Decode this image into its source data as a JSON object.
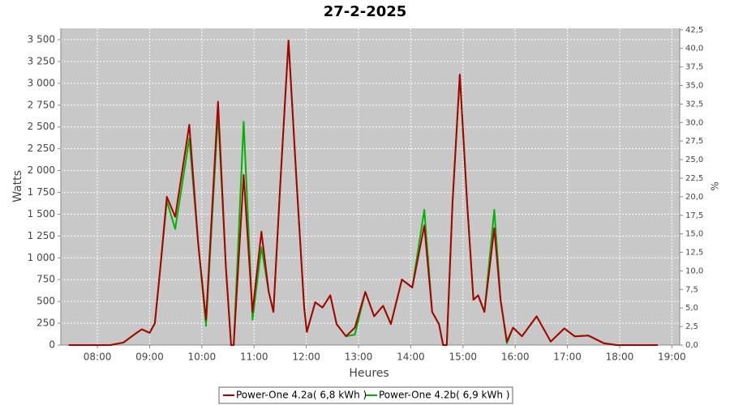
{
  "chart_data": {
    "type": "line",
    "title": "27-2-2025",
    "x_label": "Heures",
    "y_label": "Watts",
    "y2_label": "%",
    "x": [
      7.45,
      8.0,
      8.25,
      8.5,
      8.75,
      8.85,
      9.0,
      9.1,
      9.2,
      9.33,
      9.49,
      9.76,
      9.93,
      10.08,
      10.31,
      10.46,
      10.56,
      10.61,
      10.8,
      10.97,
      11.14,
      11.28,
      11.37,
      11.5,
      11.66,
      11.81,
      11.96,
      12.01,
      12.17,
      12.31,
      12.46,
      12.58,
      12.76,
      12.93,
      13.13,
      13.3,
      13.47,
      13.62,
      13.83,
      14.03,
      14.26,
      14.41,
      14.54,
      14.62,
      14.69,
      14.8,
      14.94,
      15.08,
      15.2,
      15.29,
      15.41,
      15.6,
      15.72,
      15.84,
      15.96,
      16.13,
      16.41,
      16.68,
      16.94,
      17.14,
      17.4,
      17.7,
      17.94,
      18.73
    ],
    "series": [
      {
        "name": "Power-One 4.2a( 6,8 kWh )",
        "color": "#aa0000",
        "values": [
          0,
          0,
          0,
          30,
          140,
          180,
          140,
          250,
          850,
          1700,
          1470,
          2525,
          1170,
          290,
          2790,
          890,
          0,
          0,
          1950,
          380,
          1300,
          610,
          380,
          1820,
          3490,
          1910,
          430,
          150,
          490,
          430,
          570,
          240,
          100,
          200,
          610,
          330,
          450,
          240,
          750,
          660,
          1370,
          380,
          240,
          0,
          0,
          1630,
          3100,
          1630,
          520,
          570,
          380,
          1340,
          520,
          40,
          200,
          100,
          330,
          40,
          190,
          100,
          110,
          20,
          0,
          0
        ]
      },
      {
        "name": "Power-One 4.2b( 6,9 kWh )",
        "color": "#00b400",
        "values": [
          0,
          0,
          0,
          30,
          140,
          180,
          140,
          250,
          850,
          1650,
          1330,
          2370,
          1170,
          220,
          2650,
          890,
          0,
          0,
          2560,
          290,
          1120,
          610,
          380,
          1820,
          3490,
          1910,
          430,
          150,
          490,
          430,
          570,
          240,
          100,
          120,
          610,
          330,
          450,
          240,
          750,
          660,
          1550,
          380,
          240,
          0,
          0,
          1630,
          3100,
          1630,
          520,
          570,
          380,
          1550,
          520,
          20,
          200,
          100,
          330,
          40,
          190,
          100,
          110,
          20,
          0,
          0
        ]
      }
    ],
    "xlim": [
      7.3,
      19.15
    ],
    "xticks": [
      {
        "value": 8,
        "label": "08:00"
      },
      {
        "value": 9,
        "label": "09:00"
      },
      {
        "value": 10,
        "label": "10:00"
      },
      {
        "value": 11,
        "label": "11:00"
      },
      {
        "value": 12,
        "label": "12:00"
      },
      {
        "value": 13,
        "label": "13:00"
      },
      {
        "value": 14,
        "label": "14:00"
      },
      {
        "value": 15,
        "label": "15:00"
      },
      {
        "value": 16,
        "label": "16:00"
      },
      {
        "value": 17,
        "label": "17:00"
      },
      {
        "value": 18,
        "label": "18:00"
      },
      {
        "value": 19,
        "label": "19:00"
      }
    ],
    "ylim": [
      0,
      3630
    ],
    "yticks": [
      0,
      250,
      500,
      750,
      {
        "value": 1000,
        "label": "1 000"
      },
      {
        "value": 1250,
        "label": "1 250"
      },
      {
        "value": 1500,
        "label": "1 500"
      },
      {
        "value": 1750,
        "label": "1 750"
      },
      {
        "value": 2000,
        "label": "2 000"
      },
      {
        "value": 2250,
        "label": "2 250"
      },
      {
        "value": 2500,
        "label": "2 500"
      },
      {
        "value": 2750,
        "label": "2 750"
      },
      {
        "value": 3000,
        "label": "3 000"
      },
      {
        "value": 3250,
        "label": "3 250"
      },
      {
        "value": 3500,
        "label": "3 500"
      }
    ],
    "y2lim": [
      0,
      42.7
    ],
    "y2ticks": [
      {
        "value": 0,
        "label": "0,0"
      },
      {
        "value": 2.5,
        "label": "2,5"
      },
      {
        "value": 5,
        "label": "5,0"
      },
      {
        "value": 7.5,
        "label": "7,5"
      },
      {
        "value": 10,
        "label": "10,0"
      },
      {
        "value": 12.5,
        "label": "12,5"
      },
      {
        "value": 15,
        "label": "15,0"
      },
      {
        "value": 17.5,
        "label": "17,5"
      },
      {
        "value": 20,
        "label": "20,0"
      },
      {
        "value": 22.5,
        "label": "22,5"
      },
      {
        "value": 25,
        "label": "25,0"
      },
      {
        "value": 27.5,
        "label": "27,5"
      },
      {
        "value": 30,
        "label": "30,0"
      },
      {
        "value": 32.5,
        "label": "32,5"
      },
      {
        "value": 35,
        "label": "35,0"
      },
      {
        "value": 37.5,
        "label": "37,5"
      },
      {
        "value": 40,
        "label": "40,0"
      },
      {
        "value": 42.5,
        "label": "42,5"
      }
    ],
    "grid": true
  }
}
